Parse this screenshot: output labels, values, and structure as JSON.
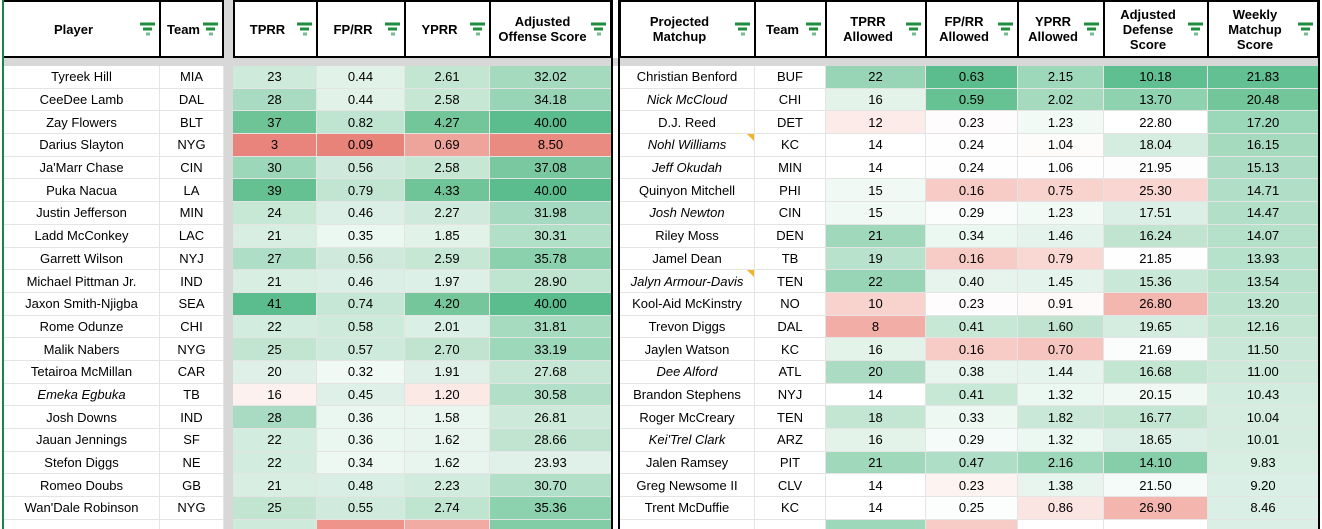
{
  "style": {
    "accent_green": "#1e8e3e",
    "note_indicator_color": "#f0b429",
    "hidden_rowcol_gray": "#d8d8d8",
    "table_edge_green": "#1d8348",
    "table_border_black": "#000000",
    "scale_green_max": "#5bbd8d",
    "scale_red_min": "#e8847b",
    "icons": {
      "header_filter": "filter-icon",
      "cell_note": "note-indicator-icon"
    }
  },
  "left_table": {
    "headers": [
      {
        "label": "Player"
      },
      {
        "label": "Team"
      },
      {
        "label": "TPRR"
      },
      {
        "label": "FP/RR"
      },
      {
        "label": "YPRR"
      },
      {
        "label": "Adjusted Offense Score"
      }
    ],
    "rows": [
      {
        "player": "Tyreek Hill",
        "team": "MIA",
        "italic": false,
        "note": false,
        "values": [
          "23",
          "0.44",
          "2.61",
          "32.02"
        ],
        "colors": [
          "#cdeadb",
          "#e1f2e9",
          "#c3e6d3",
          "#a5dabf"
        ]
      },
      {
        "player": "CeeDee Lamb",
        "team": "DAL",
        "italic": false,
        "note": false,
        "values": [
          "28",
          "0.44",
          "2.58",
          "34.18"
        ],
        "colors": [
          "#a8dbc1",
          "#e1f2e9",
          "#c5e7d4",
          "#98d5b7"
        ]
      },
      {
        "player": "Zay Flowers",
        "team": "BLT",
        "italic": false,
        "note": false,
        "values": [
          "37",
          "0.82",
          "4.27",
          "40.00"
        ],
        "colors": [
          "#6fc497",
          "#bfe4d0",
          "#73c69a",
          "#5bbd8d"
        ]
      },
      {
        "player": "Darius Slayton",
        "team": "NYG",
        "italic": false,
        "note": false,
        "values": [
          "3",
          "0.09",
          "0.69",
          "8.50"
        ],
        "colors": [
          "#e8847b",
          "#e8837a",
          "#efa49b",
          "#ea8b82"
        ]
      },
      {
        "player": "Ja'Marr Chase",
        "team": "CIN",
        "italic": false,
        "note": false,
        "values": [
          "30",
          "0.56",
          "2.58",
          "37.08"
        ],
        "colors": [
          "#9cd7b9",
          "#cfeadd",
          "#c5e7d4",
          "#7ac89f"
        ]
      },
      {
        "player": "Puka Nacua",
        "team": "LA",
        "italic": false,
        "note": false,
        "values": [
          "39",
          "0.79",
          "4.33",
          "40.00"
        ],
        "colors": [
          "#65c192",
          "#c2e5d2",
          "#70c598",
          "#5bbd8d"
        ]
      },
      {
        "player": "Justin Jefferson",
        "team": "MIN",
        "italic": false,
        "note": false,
        "values": [
          "24",
          "0.46",
          "2.27",
          "31.98"
        ],
        "colors": [
          "#c8e8d6",
          "#dcefe6",
          "#cfeadd",
          "#a6dac0"
        ]
      },
      {
        "player": "Ladd McConkey",
        "team": "LAC",
        "italic": false,
        "note": false,
        "values": [
          "21",
          "0.35",
          "1.85",
          "30.31"
        ],
        "colors": [
          "#d8eee3",
          "#ebf7f1",
          "#e1f2e9",
          "#b2dfc8"
        ]
      },
      {
        "player": "Garrett Wilson",
        "team": "NYJ",
        "italic": false,
        "note": false,
        "values": [
          "27",
          "0.56",
          "2.59",
          "35.78"
        ],
        "colors": [
          "#aedec5",
          "#cfeadd",
          "#c5e7d4",
          "#8bd1ae"
        ]
      },
      {
        "player": "Michael Pittman Jr.",
        "team": "IND",
        "italic": false,
        "note": false,
        "values": [
          "21",
          "0.46",
          "1.97",
          "28.90"
        ],
        "colors": [
          "#d8eee3",
          "#dcefe6",
          "#ddf0e7",
          "#bfe4d0"
        ]
      },
      {
        "player": "Jaxon Smith-Njigba",
        "team": "SEA",
        "italic": false,
        "note": false,
        "values": [
          "41",
          "0.74",
          "4.20",
          "40.00"
        ],
        "colors": [
          "#5bbd8d",
          "#c6e7d5",
          "#75c79b",
          "#5bbd8d"
        ]
      },
      {
        "player": "Rome Odunze",
        "team": "CHI",
        "italic": false,
        "note": false,
        "values": [
          "22",
          "0.58",
          "2.01",
          "31.81"
        ],
        "colors": [
          "#d3ece0",
          "#cdeadb",
          "#daefe5",
          "#a7dbc0"
        ]
      },
      {
        "player": "Malik Nabers",
        "team": "NYG",
        "italic": false,
        "note": false,
        "values": [
          "25",
          "0.57",
          "2.70",
          "33.19"
        ],
        "colors": [
          "#c1e5d1",
          "#ceeadc",
          "#c0e4d0",
          "#9ed8bb"
        ]
      },
      {
        "player": "Tetairoa McMillan",
        "team": "CAR",
        "italic": false,
        "note": false,
        "values": [
          "20",
          "0.32",
          "1.91",
          "27.68"
        ],
        "colors": [
          "#def0e8",
          "#f1f9f5",
          "#def0e8",
          "#c6e7d5"
        ]
      },
      {
        "player": "Emeka Egbuka",
        "team": "TB",
        "italic": true,
        "note": false,
        "values": [
          "16",
          "0.45",
          "1.20",
          "30.58"
        ],
        "colors": [
          "#fdf1ef",
          "#def0e8",
          "#fbe9e6",
          "#b1dfc8"
        ]
      },
      {
        "player": "Josh Downs",
        "team": "IND",
        "italic": false,
        "note": false,
        "values": [
          "28",
          "0.36",
          "1.58",
          "26.81"
        ],
        "colors": [
          "#a8dbc1",
          "#eaf6f0",
          "#e9f6ef",
          "#cce9da"
        ]
      },
      {
        "player": "Jauan Jennings",
        "team": "SF",
        "italic": false,
        "note": false,
        "values": [
          "22",
          "0.36",
          "1.62",
          "28.66"
        ],
        "colors": [
          "#d3ece0",
          "#eaf6f0",
          "#e8f5ee",
          "#c0e4d0"
        ]
      },
      {
        "player": "Stefon Diggs",
        "team": "NE",
        "italic": false,
        "note": false,
        "values": [
          "22",
          "0.34",
          "1.62",
          "23.93"
        ],
        "colors": [
          "#d3ece0",
          "#edf8f2",
          "#e8f5ee",
          "#dff1e8"
        ]
      },
      {
        "player": "Romeo Doubs",
        "team": "GB",
        "italic": false,
        "note": false,
        "values": [
          "21",
          "0.48",
          "2.23",
          "30.70"
        ],
        "colors": [
          "#d8eee3",
          "#d9eee4",
          "#d1ebde",
          "#b1dfc8"
        ]
      },
      {
        "player": "Wan'Dale Robinson",
        "team": "NYG",
        "italic": false,
        "note": false,
        "values": [
          "25",
          "0.55",
          "2.74",
          "35.36"
        ],
        "colors": [
          "#c1e5d1",
          "#d0ebdd",
          "#bfe4d0",
          "#8dd2af"
        ]
      },
      {
        "player": "",
        "team": "",
        "italic": false,
        "note": false,
        "values": [
          "",
          "",
          "",
          ""
        ],
        "colors": [
          "#cdeadb",
          "#ee948b",
          "#f1aba2",
          "#82cca6"
        ]
      }
    ]
  },
  "right_table": {
    "headers": [
      {
        "label": "Projected Matchup"
      },
      {
        "label": "Team"
      },
      {
        "label": "TPRR Allowed"
      },
      {
        "label": "FP/RR Allowed"
      },
      {
        "label": "YPRR Allowed"
      },
      {
        "label": "Adjusted Defense Score"
      },
      {
        "label": "Weekly Matchup Score"
      }
    ],
    "rows": [
      {
        "player": "Christian Benford",
        "team": "BUF",
        "italic": false,
        "note": false,
        "values": [
          "22",
          "0.63",
          "2.15",
          "10.18",
          "21.83"
        ],
        "colors": [
          "#98d5b7",
          "#5bbd8d",
          "#9dd8ba",
          "#5fbf90",
          "#62c092"
        ]
      },
      {
        "player": "Nick McCloud",
        "team": "CHI",
        "italic": true,
        "note": false,
        "values": [
          "16",
          "0.59",
          "2.02",
          "13.70",
          "20.48"
        ],
        "colors": [
          "#e3f3ea",
          "#66c193",
          "#a5dabf",
          "#8ed2b0",
          "#73c69a"
        ]
      },
      {
        "player": "D.J. Reed",
        "team": "DET",
        "italic": false,
        "note": false,
        "values": [
          "12",
          "0.23",
          "1.23",
          "22.80",
          "17.20"
        ],
        "colors": [
          "#fcebe9",
          "#fefcfc",
          "#f2faf6",
          "#fefffe",
          "#9bd7b9"
        ]
      },
      {
        "player": "Nohl Williams",
        "team": "KC",
        "italic": true,
        "note": true,
        "values": [
          "14",
          "0.24",
          "1.04",
          "18.04",
          "16.15"
        ],
        "colors": [
          "#ffffff",
          "#fdfefd",
          "#fefcfb",
          "#d5ede1",
          "#a5dabf"
        ]
      },
      {
        "player": "Jeff Okudah",
        "team": "MIN",
        "italic": true,
        "note": false,
        "values": [
          "14",
          "0.24",
          "1.06",
          "21.95",
          "15.13"
        ],
        "colors": [
          "#ffffff",
          "#fdfefd",
          "#fdfefd",
          "#fcfdfc",
          "#addcc4"
        ]
      },
      {
        "player": "Quinyon Mitchell",
        "team": "PHI",
        "italic": false,
        "note": false,
        "values": [
          "15",
          "0.16",
          "0.75",
          "25.30",
          "14.71"
        ],
        "colors": [
          "#f0f9f4",
          "#f7ccc6",
          "#f8d2cd",
          "#f9d6d1",
          "#b0dec6"
        ]
      },
      {
        "player": "Josh Newton",
        "team": "CIN",
        "italic": true,
        "note": false,
        "values": [
          "15",
          "0.29",
          "1.23",
          "17.51",
          "14.47"
        ],
        "colors": [
          "#f0f9f4",
          "#fbfdfc",
          "#f2faf6",
          "#dbefe6",
          "#b2dfc8"
        ]
      },
      {
        "player": "Riley Moss",
        "team": "DEN",
        "italic": false,
        "note": false,
        "values": [
          "21",
          "0.34",
          "1.46",
          "16.24",
          "14.07"
        ],
        "colors": [
          "#a0d8bc",
          "#ebf7f1",
          "#e4f3eb",
          "#c0e4d0",
          "#b5e0ca"
        ]
      },
      {
        "player": "Jamel Dean",
        "team": "TB",
        "italic": false,
        "note": false,
        "values": [
          "19",
          "0.16",
          "0.79",
          "21.85",
          "13.93"
        ],
        "colors": [
          "#b9e2cc",
          "#f7ccc6",
          "#f9d7d2",
          "#fdfefd",
          "#b6e1cb"
        ]
      },
      {
        "player": "Jalyn Armour-Davis",
        "team": "TEN",
        "italic": true,
        "note": true,
        "values": [
          "22",
          "0.40",
          "1.45",
          "15.36",
          "13.54"
        ],
        "colors": [
          "#98d5b7",
          "#e6f4ed",
          "#e4f3eb",
          "#c9e8d7",
          "#b9e2cc"
        ]
      },
      {
        "player": "Kool-Aid McKinstry",
        "team": "NO",
        "italic": false,
        "note": false,
        "values": [
          "10",
          "0.23",
          "0.91",
          "26.80",
          "13.20"
        ],
        "colors": [
          "#f8d2cd",
          "#fefcfc",
          "#fefafa",
          "#f4b7b0",
          "#bce3ce"
        ]
      },
      {
        "player": "Trevon Diggs",
        "team": "DAL",
        "italic": false,
        "note": false,
        "values": [
          "8",
          "0.41",
          "1.60",
          "19.65",
          "12.16"
        ],
        "colors": [
          "#f2aea6",
          "#c8e8d6",
          "#c0e4d0",
          "#d5ede1",
          "#c3e6d3"
        ]
      },
      {
        "player": "Jaylen Watson",
        "team": "KC",
        "italic": false,
        "note": false,
        "values": [
          "16",
          "0.16",
          "0.70",
          "21.69",
          "11.50"
        ],
        "colors": [
          "#e3f3ea",
          "#f7ccc6",
          "#f6c5bf",
          "#fbfdfc",
          "#c9e8d7"
        ]
      },
      {
        "player": "Dee Alford",
        "team": "ATL",
        "italic": true,
        "note": false,
        "values": [
          "20",
          "0.38",
          "1.44",
          "16.68",
          "11.00"
        ],
        "colors": [
          "#abdcc3",
          "#e8f5ee",
          "#e5f4ec",
          "#c3e6d3",
          "#cce9da"
        ]
      },
      {
        "player": "Brandon Stephens",
        "team": "NYJ",
        "italic": false,
        "note": false,
        "values": [
          "14",
          "0.41",
          "1.32",
          "20.15",
          "10.43"
        ],
        "colors": [
          "#ffffff",
          "#c8e8d6",
          "#ebf7f1",
          "#f0f9f4",
          "#d2ecdf"
        ]
      },
      {
        "player": "Roger McCreary",
        "team": "TEN",
        "italic": false,
        "note": false,
        "values": [
          "18",
          "0.33",
          "1.82",
          "16.77",
          "10.04"
        ],
        "colors": [
          "#c3e6d3",
          "#edf8f2",
          "#c9e8d7",
          "#c3e6d3",
          "#d5ede1"
        ]
      },
      {
        "player": "Kei'Trel Clark",
        "team": "ARZ",
        "italic": true,
        "note": false,
        "values": [
          "16",
          "0.29",
          "1.32",
          "18.65",
          "10.01"
        ],
        "colors": [
          "#e3f3ea",
          "#f4fbf8",
          "#ebf7f1",
          "#dbefe6",
          "#d5ede1"
        ]
      },
      {
        "player": "Jalen Ramsey",
        "team": "PIT",
        "italic": false,
        "note": false,
        "values": [
          "21",
          "0.47",
          "2.16",
          "14.10",
          "9.83"
        ],
        "colors": [
          "#a0d8bc",
          "#aedec5",
          "#9dd8ba",
          "#85cea9",
          "#d7eee2"
        ]
      },
      {
        "player": "Greg Newsome II",
        "team": "CLV",
        "italic": false,
        "note": false,
        "values": [
          "14",
          "0.23",
          "1.38",
          "21.50",
          "9.20"
        ],
        "colors": [
          "#ffffff",
          "#fdf4f2",
          "#e7f5ee",
          "#f4fbf8",
          "#daefe5"
        ]
      },
      {
        "player": "Trent McDuffie",
        "team": "KC",
        "italic": false,
        "note": false,
        "values": [
          "14",
          "0.25",
          "0.86",
          "26.90",
          "8.46"
        ],
        "colors": [
          "#ffffff",
          "#fcfdfd",
          "#fbe5e2",
          "#f4b5ae",
          "#daefe5"
        ]
      },
      {
        "player": "",
        "team": "",
        "italic": false,
        "note": false,
        "values": [
          "",
          "",
          "",
          "",
          ""
        ],
        "colors": [
          "#9dd8ba",
          "#f7ccc6",
          "#ffffff",
          "#ffffff",
          "#dcefe6"
        ]
      }
    ]
  }
}
